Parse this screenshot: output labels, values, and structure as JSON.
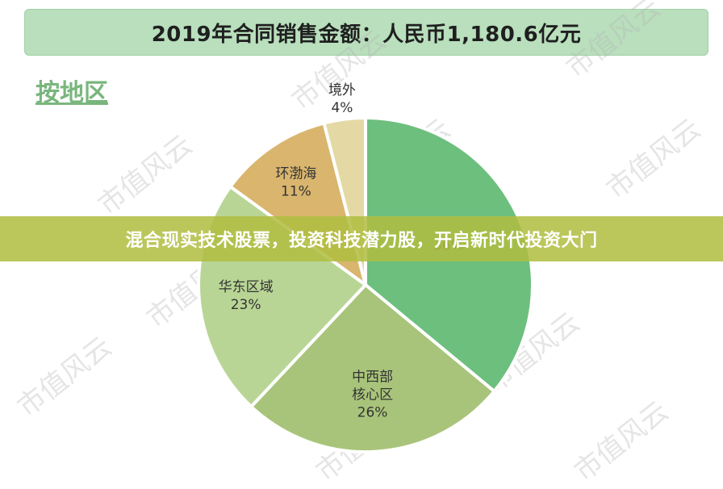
{
  "header": {
    "title": "2019年合同销售金额：人民币1,180.6亿元"
  },
  "section": {
    "label": "按地区"
  },
  "watermark": {
    "text": "市值风云"
  },
  "banner": {
    "text": "混合现实技术股票，投资科技潜力股，开启新时代投资大门"
  },
  "chart_data": {
    "type": "pie",
    "title": "2019年合同销售金额：人民币1,180.6亿元",
    "subtitle": "按地区",
    "slices": [
      {
        "label": "",
        "value": 36,
        "value_label": "36%",
        "color": "#6dbf7e"
      },
      {
        "label": "中西部\n核心区",
        "value": 26,
        "value_label": "26%",
        "color": "#a8c47a"
      },
      {
        "label": "华东区域",
        "value": 23,
        "value_label": "23%",
        "color": "#b8d595"
      },
      {
        "label": "环渤海",
        "value": 11,
        "value_label": "11%",
        "color": "#d9b56e"
      },
      {
        "label": "境外",
        "value": 4,
        "value_label": "4%",
        "color": "#e4d9a4"
      }
    ]
  }
}
